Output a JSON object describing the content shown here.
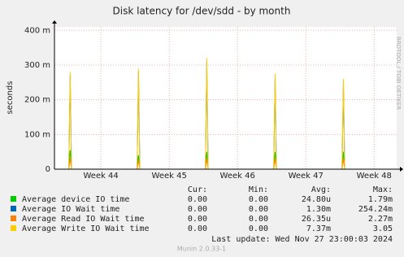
{
  "chart_data": {
    "type": "line",
    "title": "Disk latency for /dev/sdd - by month",
    "y_label": "seconds",
    "side_label": "RRDTOOL / TOBI OETIKER",
    "x": [
      43.33,
      43.53,
      43.55,
      43.57,
      44.53,
      44.55,
      44.57,
      45.53,
      45.55,
      45.57,
      46.53,
      46.55,
      46.57,
      47.53,
      47.55,
      47.57,
      48.3
    ],
    "xlim": [
      43.32,
      48.33
    ],
    "xticks": [
      {
        "value": 44,
        "label": "Week 44"
      },
      {
        "value": 45,
        "label": "Week 45"
      },
      {
        "value": 46,
        "label": "Week 46"
      },
      {
        "value": 47,
        "label": "Week 47"
      },
      {
        "value": 48,
        "label": "Week 48"
      }
    ],
    "ylim": [
      0,
      0.41
    ],
    "yticks": [
      0,
      {
        "value": 0.1,
        "label": "100 m"
      },
      {
        "value": 0.2,
        "label": "200 m"
      },
      {
        "value": 0.3,
        "label": "300 m"
      },
      {
        "value": 0.4,
        "label": "400 m"
      }
    ],
    "grid": true,
    "stat_headers": [
      "Cur:",
      "Min:",
      "Avg:",
      "Max:"
    ],
    "series": [
      {
        "name": "Average device IO time",
        "color": "#00cc00",
        "values": [
          0,
          0,
          0.055,
          0,
          0,
          0.04,
          0,
          0,
          0.05,
          0,
          0,
          0.05,
          0,
          0,
          0.05,
          0,
          0
        ],
        "stats": [
          "0.00",
          "0.00",
          "24.80u",
          "1.79m"
        ]
      },
      {
        "name": "Average IO Wait time",
        "color": "#0066b3",
        "values": [
          0,
          0,
          0.27,
          0,
          0,
          0.28,
          0,
          0,
          0.31,
          0,
          0,
          0.265,
          0,
          0,
          0.25,
          0,
          0
        ],
        "stats": [
          "0.00",
          "0.00",
          "1.30m",
          "254.24m"
        ]
      },
      {
        "name": "Average Read IO Wait time",
        "color": "#ff8000",
        "values": [
          0,
          0,
          0.03,
          0,
          0,
          0.025,
          0,
          0,
          0.03,
          0,
          0,
          0.03,
          0,
          0,
          0.03,
          0,
          0
        ],
        "stats": [
          "0.00",
          "0.00",
          "26.35u",
          "2.27m"
        ]
      },
      {
        "name": "Average Write IO Wait time",
        "color": "#ffcc00",
        "values": [
          0,
          0,
          0.28,
          0,
          0,
          0.29,
          0,
          0,
          0.32,
          0,
          0,
          0.275,
          0,
          0,
          0.26,
          0,
          0
        ],
        "stats": [
          "0.00",
          "0.00",
          "7.37m",
          "3.05"
        ]
      }
    ],
    "last_update": "Last update:  Wed Nov 27 23:00:03 2024",
    "footer": "Munin 2.0.33-1"
  }
}
